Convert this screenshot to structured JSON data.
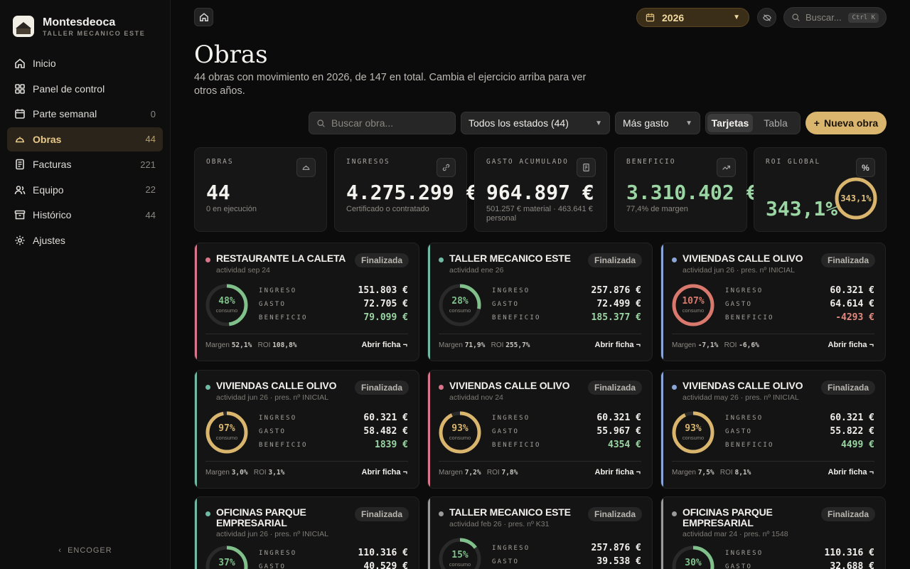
{
  "brand": {
    "name": "Montesdeoca",
    "subtitle": "TALLER MECANICO ESTE"
  },
  "nav": [
    {
      "label": "Inicio",
      "count": "",
      "icon": "home-icon"
    },
    {
      "label": "Panel de control",
      "count": "",
      "icon": "grid-icon"
    },
    {
      "label": "Parte semanal",
      "count": "0",
      "icon": "calendar-icon"
    },
    {
      "label": "Obras",
      "count": "44",
      "icon": "helmet-icon",
      "active": true
    },
    {
      "label": "Facturas",
      "count": "221",
      "icon": "invoice-icon"
    },
    {
      "label": "Equipo",
      "count": "22",
      "icon": "users-icon"
    },
    {
      "label": "Histórico",
      "count": "44",
      "icon": "archive-icon"
    },
    {
      "label": "Ajustes",
      "count": "",
      "icon": "gear-icon"
    }
  ],
  "collapse_label": "ENCOGER",
  "topbar": {
    "year": "2026",
    "search_placeholder": "Buscar...",
    "search_shortcut": "Ctrl K"
  },
  "page": {
    "title": "Obras",
    "description": "44 obras con movimiento en 2026, de 147 en total. Cambia el ejercicio arriba para ver otros años."
  },
  "toolbar": {
    "search_placeholder": "Buscar obra...",
    "state_filter": "Todos los estados (44)",
    "sort": "Más gasto",
    "view_cards": "Tarjetas",
    "view_table": "Tabla",
    "new_button": "Nueva obra"
  },
  "kpis": [
    {
      "label": "OBRAS",
      "value": "44",
      "sub": "0 en ejecución",
      "icon": "helmet-icon"
    },
    {
      "label": "INGRESOS",
      "value": "4.275.299 €",
      "sub": "Certificado o contratado",
      "icon": "link-icon"
    },
    {
      "label": "GASTO ACUMULADO",
      "value": "964.897 €",
      "sub": "501.257 € material · 463.641 € personal",
      "icon": "receipt-icon"
    },
    {
      "label": "BENEFICIO",
      "value": "3.310.402 €",
      "sub": "77,4% de margen",
      "icon": "trend-up-icon"
    },
    {
      "label": "ROI GLOBAL",
      "value": "343,1%",
      "ring_label": "343,1%",
      "icon": "percent-icon"
    }
  ],
  "labels": {
    "ingreso": "INGRESO",
    "gasto": "GASTO",
    "beneficio": "BENEFICIO",
    "consumo": "consumo",
    "margen": "Margen",
    "roi": "ROI",
    "open": "Abrir ficha ¬"
  },
  "colors": {
    "accent": "#d9b56e",
    "green": "#7fc08b",
    "red": "#d9786c",
    "rose": "#d8758a",
    "blue": "#8aa6d8",
    "teal": "#6fb9a5",
    "gray": "#9a9a9a"
  },
  "obras": [
    {
      "name": "RESTAURANTE LA CALETA",
      "activity": "actividad sep 24",
      "status": "Finalizada",
      "consumo": "48%",
      "consumo_frac": 0.48,
      "ingreso": "151.803 €",
      "gasto": "72.705 €",
      "beneficio": "79.099 €",
      "beneficio_sign": "pos",
      "margen": "52,1%",
      "roi": "108,8%",
      "color": "rose",
      "ring": "green"
    },
    {
      "name": "TALLER MECANICO ESTE",
      "activity": "actividad ene 26",
      "status": "Finalizada",
      "consumo": "28%",
      "consumo_frac": 0.28,
      "ingreso": "257.876 €",
      "gasto": "72.499 €",
      "beneficio": "185.377 €",
      "beneficio_sign": "pos",
      "margen": "71,9%",
      "roi": "255,7%",
      "color": "teal",
      "ring": "green"
    },
    {
      "name": "VIVIENDAS CALLE OLIVO",
      "activity": "actividad jun 26 · pres. nº INICIAL",
      "status": "Finalizada",
      "consumo": "107%",
      "consumo_frac": 1.0,
      "ingreso": "60.321 €",
      "gasto": "64.614 €",
      "beneficio": "-4293 €",
      "beneficio_sign": "neg",
      "margen": "-7,1%",
      "roi": "-6,6%",
      "color": "blue",
      "ring": "red"
    },
    {
      "name": "VIVIENDAS CALLE OLIVO",
      "activity": "actividad jun 26 · pres. nº INICIAL",
      "status": "Finalizada",
      "consumo": "97%",
      "consumo_frac": 0.97,
      "ingreso": "60.321 €",
      "gasto": "58.482 €",
      "beneficio": "1839 €",
      "beneficio_sign": "pos",
      "margen": "3,0%",
      "roi": "3,1%",
      "color": "teal",
      "ring": "gold"
    },
    {
      "name": "VIVIENDAS CALLE OLIVO",
      "activity": "actividad nov 24",
      "status": "Finalizada",
      "consumo": "93%",
      "consumo_frac": 0.93,
      "ingreso": "60.321 €",
      "gasto": "55.967 €",
      "beneficio": "4354 €",
      "beneficio_sign": "pos",
      "margen": "7,2%",
      "roi": "7,8%",
      "color": "rose",
      "ring": "gold"
    },
    {
      "name": "VIVIENDAS CALLE OLIVO",
      "activity": "actividad may 26 · pres. nº INICIAL",
      "status": "Finalizada",
      "consumo": "93%",
      "consumo_frac": 0.93,
      "ingreso": "60.321 €",
      "gasto": "55.822 €",
      "beneficio": "4499 €",
      "beneficio_sign": "pos",
      "margen": "7,5%",
      "roi": "8,1%",
      "color": "blue",
      "ring": "gold"
    },
    {
      "name": "OFICINAS PARQUE EMPRESARIAL",
      "activity": "actividad jun 26 · pres. nº INICIAL",
      "status": "Finalizada",
      "consumo": "37%",
      "consumo_frac": 0.37,
      "ingreso": "110.316 €",
      "gasto": "40.529 €",
      "beneficio": "",
      "beneficio_sign": "pos",
      "margen": "",
      "roi": "",
      "color": "teal",
      "ring": "green"
    },
    {
      "name": "TALLER MECANICO ESTE",
      "activity": "actividad feb 26 · pres. nº K31",
      "status": "Finalizada",
      "consumo": "15%",
      "consumo_frac": 0.15,
      "ingreso": "257.876 €",
      "gasto": "39.538 €",
      "beneficio": "",
      "beneficio_sign": "pos",
      "margen": "",
      "roi": "",
      "color": "gray",
      "ring": "green"
    },
    {
      "name": "OFICINAS PARQUE EMPRESARIAL",
      "activity": "actividad mar 24 · pres. nº 1548",
      "status": "Finalizada",
      "consumo": "30%",
      "consumo_frac": 0.3,
      "ingreso": "110.316 €",
      "gasto": "32.688 €",
      "beneficio": "",
      "beneficio_sign": "pos",
      "margen": "",
      "roi": "",
      "color": "gray",
      "ring": "green"
    }
  ]
}
